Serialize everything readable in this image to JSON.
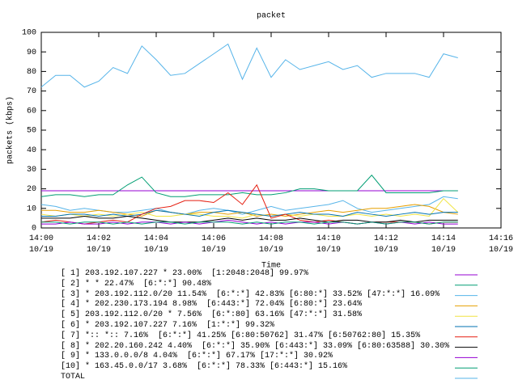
{
  "chart_data": {
    "type": "line",
    "title": "packet",
    "y_label": "packets (kbps)",
    "x_label": "Time",
    "x": [
      0,
      0.5,
      1,
      1.5,
      2,
      2.5,
      3,
      3.5,
      4,
      4.5,
      5,
      5.5,
      6,
      6.5,
      7,
      7.5,
      8,
      8.5,
      9,
      9.5,
      10,
      10.5,
      11,
      11.5,
      12,
      12.5,
      13,
      13.5,
      14,
      14.5
    ],
    "xlim": [
      0,
      16
    ],
    "xticks": [
      {
        "value": 0,
        "label": "14:00\n10/19"
      },
      {
        "value": 2,
        "label": "14:02\n10/19"
      },
      {
        "value": 4,
        "label": "14:04\n10/19"
      },
      {
        "value": 6,
        "label": "14:06\n10/19"
      },
      {
        "value": 8,
        "label": "14:08\n10/19"
      },
      {
        "value": 10,
        "label": "14:10\n10/19"
      },
      {
        "value": 12,
        "label": "14:12\n10/19"
      },
      {
        "value": 14,
        "label": "14:14\n10/19"
      },
      {
        "value": 16,
        "label": "14:16\n10/19"
      }
    ],
    "ylim": [
      0,
      100
    ],
    "yticks": [
      0,
      10,
      20,
      30,
      40,
      50,
      60,
      70,
      80,
      90,
      100
    ],
    "grid": false,
    "series": [
      {
        "name": "[ 1] 203.192.107.227 * 23.00%  [1:2048:2048] 99.97%",
        "color": "#9400d3",
        "values": [
          19,
          19,
          19,
          19,
          19,
          19,
          19,
          19,
          19,
          19,
          19,
          19,
          19,
          19,
          19,
          19,
          19,
          19,
          19,
          19,
          19,
          19,
          19,
          19,
          19,
          19,
          19,
          19,
          19,
          19
        ]
      },
      {
        "name": "[ 2] * * 22.47%  [6:*:*] 90.48%",
        "color": "#009e73",
        "values": [
          16,
          17,
          17,
          16,
          17,
          17,
          22,
          26,
          18,
          16,
          16,
          17,
          17,
          17,
          18,
          17,
          17,
          18,
          20,
          20,
          19,
          19,
          19,
          27,
          18,
          18,
          18,
          18,
          19,
          19
        ]
      },
      {
        "name": "[ 3] * 203.192.112.0/20 11.54%  [6:*:*] 42.83% [6:80:*] 33.52% [47:*:*] 16.09%",
        "color": "#56b4e9",
        "values": [
          12,
          11,
          9,
          10,
          9,
          8,
          8,
          9,
          10,
          8,
          7,
          9,
          10,
          9,
          7,
          9,
          11,
          9,
          10,
          11,
          12,
          14,
          10,
          8,
          9,
          10,
          11,
          12,
          16,
          15
        ]
      },
      {
        "name": "[ 4] * 202.230.173.194 8.98%  [6:443:*] 72.04% [6:80:*] 23.64%",
        "color": "#e69f00",
        "values": [
          9,
          9,
          8,
          8,
          9,
          8,
          7,
          6,
          9,
          8,
          7,
          8,
          8,
          7,
          8,
          6,
          7,
          6,
          7,
          8,
          9,
          8,
          9,
          10,
          10,
          11,
          12,
          11,
          8,
          7
        ]
      },
      {
        "name": "[ 5] 203.192.112.0/20 * 7.56%  [6:*:80] 63.16% [47:*:*] 31.58%",
        "color": "#f0e442",
        "values": [
          7,
          6,
          7,
          6,
          7,
          6,
          7,
          8,
          6,
          6,
          7,
          7,
          6,
          6,
          5,
          7,
          6,
          7,
          6,
          7,
          6,
          6,
          7,
          6,
          7,
          6,
          7,
          6,
          15,
          8
        ]
      },
      {
        "name": "[ 6] * 203.192.107.227 7.16%  [1:*:*] 99.32%",
        "color": "#0072b2",
        "values": [
          6,
          6,
          7,
          7,
          6,
          7,
          6,
          7,
          9,
          8,
          7,
          6,
          8,
          9,
          8,
          7,
          6,
          7,
          8,
          7,
          7,
          6,
          8,
          7,
          6,
          7,
          8,
          7,
          8,
          8
        ]
      },
      {
        "name": "[ 7] *:: *:: 7.16%  [6:*:*] 41.25% [6:80:50762] 31.47% [6:50762:80] 15.35%",
        "color": "#e51e10",
        "values": [
          3,
          4,
          3,
          2,
          3,
          4,
          3,
          7,
          10,
          11,
          14,
          14,
          13,
          18,
          12,
          22,
          5,
          7,
          4,
          3,
          4,
          3,
          2,
          3,
          3,
          3,
          3,
          2,
          3,
          3
        ]
      },
      {
        "name": "[ 8] * 202.20.160.242 4.40%  [6:*:*] 35.90% [6:443:*] 33.09% [6:80:63588] 30.30%",
        "color": "#000000",
        "values": [
          5,
          5,
          5,
          6,
          5,
          5,
          6,
          5,
          4,
          3,
          3,
          3,
          4,
          5,
          4,
          5,
          4,
          4,
          5,
          4,
          3,
          4,
          4,
          3,
          3,
          4,
          3,
          4,
          4,
          4
        ]
      },
      {
        "name": "[ 9] * 133.0.0.0/8 4.04%  [6:*:*] 67.17% [17:*:*] 30.92%",
        "color": "#9400d3",
        "values": [
          2,
          2,
          3,
          2,
          2,
          3,
          2,
          3,
          3,
          2,
          3,
          2,
          3,
          4,
          3,
          2,
          3,
          2,
          3,
          3,
          2,
          3,
          2,
          3,
          2,
          3,
          2,
          3,
          2,
          2
        ]
      },
      {
        "name": "[10] * 163.45.0.0/17 3.68%  [6:*:*] 78.33% [6:443:*] 15.16%",
        "color": "#009e73",
        "values": [
          3,
          3,
          2,
          3,
          3,
          2,
          3,
          2,
          3,
          3,
          2,
          3,
          3,
          3,
          2,
          3,
          2,
          3,
          3,
          2,
          3,
          3,
          2,
          3,
          2,
          3,
          3,
          2,
          3,
          3
        ]
      },
      {
        "name": "TOTAL",
        "color": "#56b4e9",
        "values": [
          72,
          78,
          78,
          72,
          75,
          82,
          79,
          93,
          86,
          78,
          79,
          84,
          89,
          94,
          76,
          92,
          77,
          86,
          81,
          83,
          85,
          81,
          83,
          77,
          79,
          79,
          79,
          77,
          89,
          87
        ]
      }
    ]
  }
}
